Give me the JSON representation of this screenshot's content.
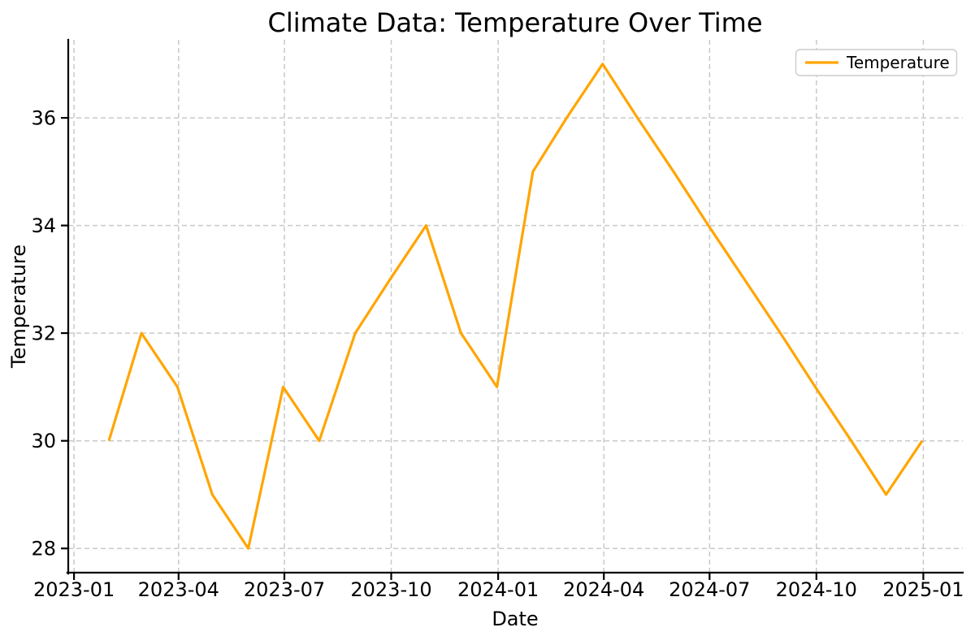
{
  "chart_data": {
    "type": "line",
    "title": "Climate Data: Temperature Over Time",
    "xlabel": "Date",
    "ylabel": "Temperature",
    "x": [
      "2023-01-31",
      "2023-02-28",
      "2023-03-31",
      "2023-04-30",
      "2023-05-31",
      "2023-06-30",
      "2023-07-31",
      "2023-08-31",
      "2023-09-30",
      "2023-10-31",
      "2023-11-30",
      "2023-12-31",
      "2024-01-31",
      "2024-02-29",
      "2024-03-31",
      "2024-04-30",
      "2024-05-31",
      "2024-06-30",
      "2024-07-31",
      "2024-08-31",
      "2024-09-30",
      "2024-10-31",
      "2024-11-30",
      "2024-12-31"
    ],
    "series": [
      {
        "name": "Temperature",
        "color": "#FFA500",
        "values": [
          30,
          32,
          31,
          29,
          28,
          31,
          30,
          32,
          33,
          34,
          32,
          31,
          35,
          36,
          37,
          36,
          35,
          34,
          33,
          32,
          31,
          30,
          29,
          30
        ]
      }
    ],
    "x_ticks": [
      "2023-01",
      "2023-04",
      "2023-07",
      "2023-10",
      "2024-01",
      "2024-04",
      "2024-07",
      "2024-10",
      "2025-01"
    ],
    "y_ticks": [
      28,
      30,
      32,
      34,
      36
    ],
    "ylim": [
      27.55,
      37.45
    ],
    "x_margin_frac": 0.05,
    "grid": true,
    "grid_style": "dashed",
    "legend_position": "upper right",
    "colors": {
      "line": "#FFA500",
      "grid": "#c9c9c9",
      "spine": "#000000",
      "text": "#000000",
      "legend_border": "#cccccc",
      "legend_background": "#ffffff"
    }
  }
}
